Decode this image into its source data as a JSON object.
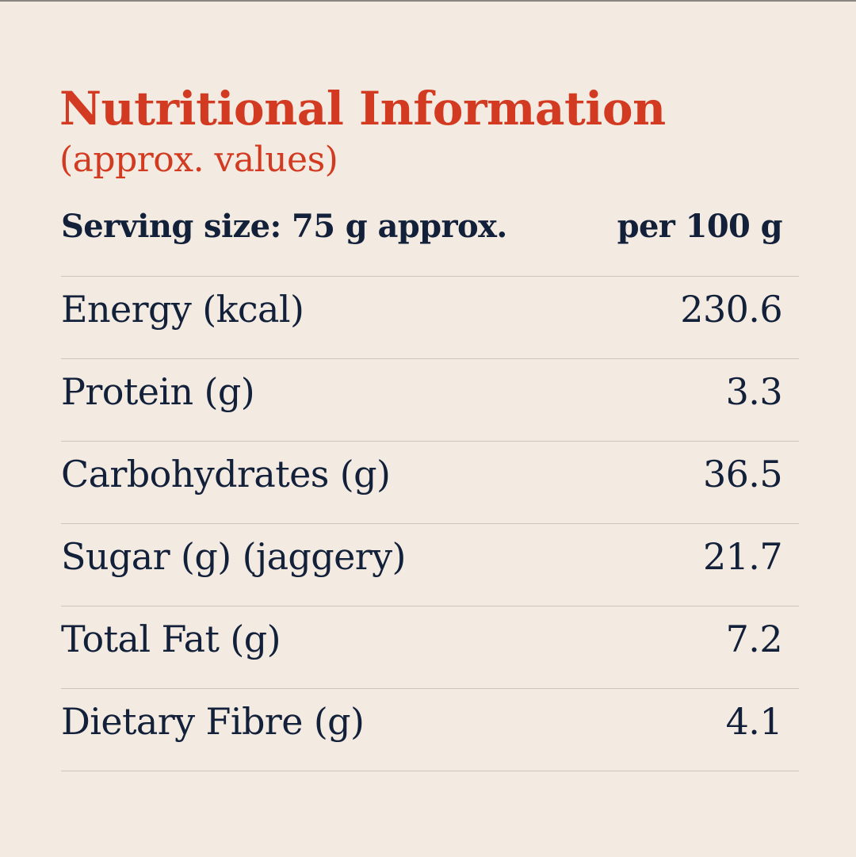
{
  "title": "Nutritional Information",
  "subtitle": "(approx. values)",
  "header": {
    "serving_label": "Serving size: 75 g approx.",
    "column_label": "per 100 g"
  },
  "rows": [
    {
      "label": "Energy (kcal)",
      "value": "230.6"
    },
    {
      "label": "Protein (g)",
      "value": "3.3"
    },
    {
      "label": "Carbohydrates (g)",
      "value": "36.5"
    },
    {
      "label": "Sugar (g) (jaggery)",
      "value": "21.7"
    },
    {
      "label": "Total Fat (g)",
      "value": "7.2"
    },
    {
      "label": "Dietary Fibre (g)",
      "value": "4.1"
    }
  ],
  "colors": {
    "background": "#f3ebe2",
    "accent": "#d23b21",
    "text": "#13203a",
    "rule": "#cbc5bd"
  }
}
